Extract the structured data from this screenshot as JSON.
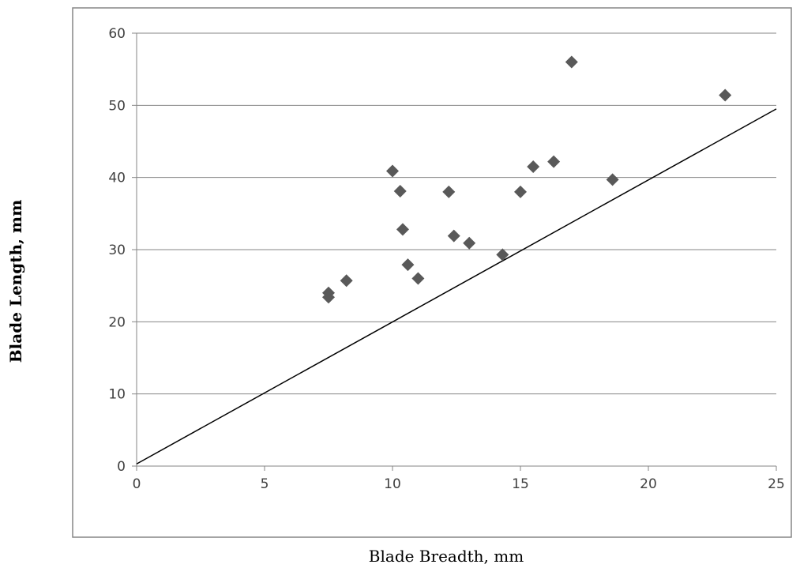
{
  "chart_data": {
    "type": "scatter",
    "title": "",
    "xlabel": "Blade Breadth, mm",
    "ylabel": "Blade Length, mm",
    "xlim": [
      0,
      25
    ],
    "ylim": [
      0,
      60
    ],
    "xticks": [
      0,
      5,
      10,
      15,
      20,
      25
    ],
    "yticks": [
      0,
      10,
      20,
      30,
      40,
      50,
      60
    ],
    "x_tick_labels": [
      "0",
      "5",
      "10",
      "15",
      "20",
      "25"
    ],
    "y_tick_labels": [
      "0",
      "10",
      "20",
      "30",
      "40",
      "50",
      "60"
    ],
    "grid": "horizontal",
    "legend": "none",
    "series": [
      {
        "marker": "diamond",
        "color": "#595959",
        "points": [
          {
            "x": 7.5,
            "y": 24.0
          },
          {
            "x": 7.5,
            "y": 23.4
          },
          {
            "x": 8.2,
            "y": 25.7
          },
          {
            "x": 10.0,
            "y": 40.9
          },
          {
            "x": 10.3,
            "y": 38.1
          },
          {
            "x": 10.4,
            "y": 32.8
          },
          {
            "x": 10.6,
            "y": 27.9
          },
          {
            "x": 11.0,
            "y": 26.0
          },
          {
            "x": 12.2,
            "y": 38.0
          },
          {
            "x": 12.4,
            "y": 31.9
          },
          {
            "x": 13.0,
            "y": 30.9
          },
          {
            "x": 14.3,
            "y": 29.3
          },
          {
            "x": 15.0,
            "y": 38.0
          },
          {
            "x": 15.5,
            "y": 41.5
          },
          {
            "x": 16.3,
            "y": 42.2
          },
          {
            "x": 17.0,
            "y": 56.0
          },
          {
            "x": 18.6,
            "y": 39.7
          },
          {
            "x": 23.0,
            "y": 51.4
          }
        ]
      }
    ],
    "reference_line": {
      "style": "solid",
      "color": "#000000",
      "points": [
        {
          "x": 0,
          "y": 0.3
        },
        {
          "x": 25,
          "y": 49.5
        }
      ]
    },
    "colors": {
      "gridline": "#868686",
      "plot_border": "#868686",
      "tick_label": "#404040",
      "marker": "#595959"
    }
  }
}
